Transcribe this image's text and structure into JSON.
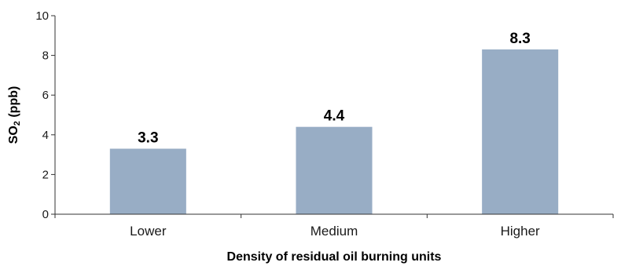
{
  "chart_data": {
    "type": "bar",
    "categories": [
      "Lower",
      "Medium",
      "Higher"
    ],
    "values": [
      3.3,
      4.4,
      8.3
    ],
    "value_labels": [
      "3.3",
      "4.4",
      "8.3"
    ],
    "xlabel": "Density of residual oil burning units",
    "ylabel": {
      "prefix": "SO",
      "subscript": "2",
      "suffix": " (ppb)"
    },
    "ylim": [
      0,
      10
    ],
    "yticks": [
      0,
      2,
      4,
      6,
      8,
      10
    ],
    "ytick_labels": [
      "0",
      "2",
      "4",
      "6",
      "8",
      "10"
    ],
    "grid": false,
    "legend": "none",
    "bar_color": "#98adc5"
  }
}
